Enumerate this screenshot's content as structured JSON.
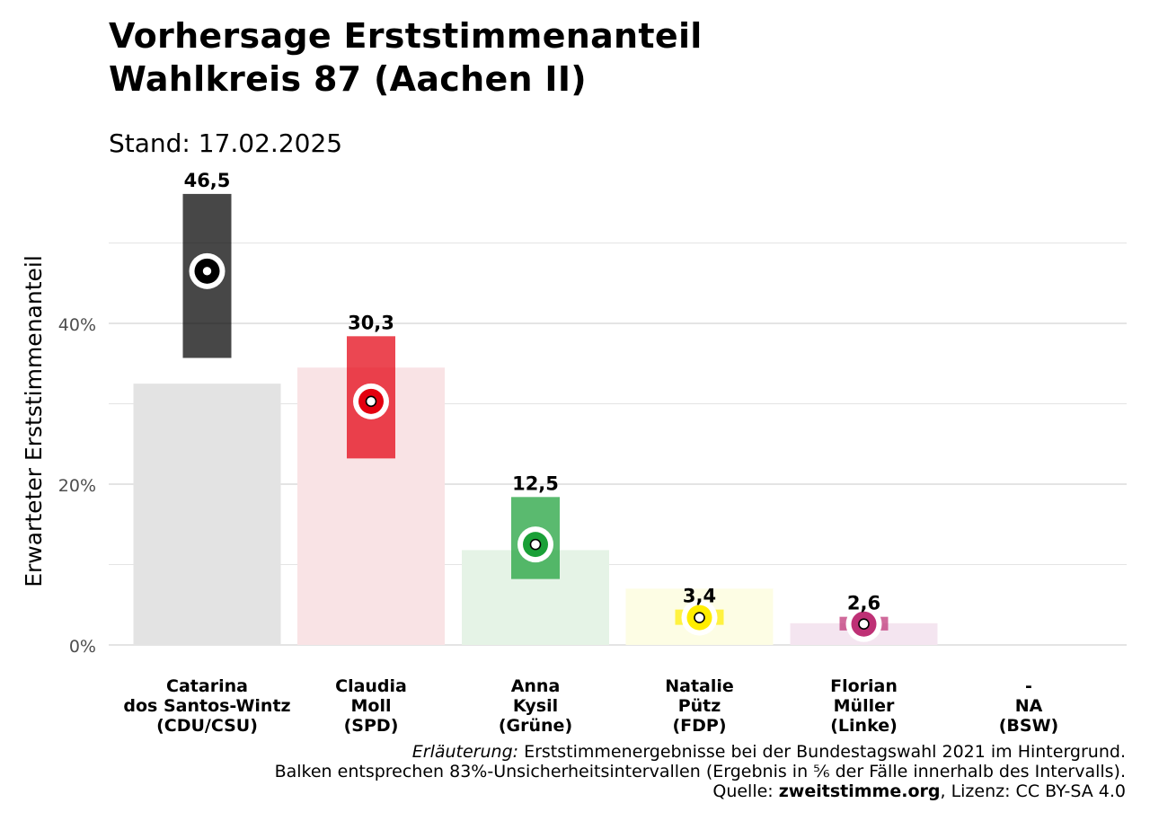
{
  "title": "Vorhersage Erststimmenanteil\nWahlkreis 87 (Aachen II)",
  "subtitle": "Stand: 17.02.2025",
  "colors": {
    "background": "#ffffff",
    "grid": "#e4e4e4",
    "text": "#000000",
    "axis_text": "#4d4d4d"
  },
  "chart_data": {
    "type": "bar",
    "ylabel": "Erwarteter Erststimmenanteil",
    "ylim": [
      0,
      56
    ],
    "yticks": [
      0,
      20,
      40
    ],
    "ytick_labels": [
      "0%",
      "20%",
      "40%"
    ],
    "grid": true,
    "categories": [
      "Catarina\ndos Santos-Wintz\n(CDU/CSU)",
      "Claudia\nMoll\n(SPD)",
      "Anna\nKysil\n(Grüne)",
      "Natalie\nPütz\n(FDP)",
      "Florian\nMüller\n(Linke)",
      "-\nNA\n(BSW)"
    ],
    "series": [
      {
        "name": "Erststimmenergebnisse Bundestagswahl 2021",
        "values": [
          32.5,
          34.5,
          11.8,
          7.0,
          2.7,
          null
        ]
      },
      {
        "name": "Vorhersage",
        "values": [
          46.5,
          30.3,
          12.5,
          3.4,
          2.6,
          null
        ],
        "data_labels": [
          "46,5",
          "30,3",
          "12,5",
          "3,4",
          "2,6",
          ""
        ],
        "lower": [
          35.7,
          23.2,
          8.2,
          2.5,
          1.8,
          null
        ],
        "upper": [
          56.1,
          38.4,
          18.4,
          4.4,
          3.5,
          null
        ]
      }
    ],
    "party_colors": [
      "#000000",
      "#e3000f",
      "#1aa037",
      "#ffed00",
      "#be3075",
      "#7d254f"
    ],
    "history_colors": [
      "#e3e3e3",
      "#f9e3e5",
      "#e5f3e6",
      "#fdfde4",
      "#f4e5f0",
      "#ede4e8"
    ]
  },
  "caption": {
    "line1_label": "Erläuterung:",
    "line1_text": " Erststimmenergebnisse bei der Bundestagswahl 2021 im Hintergrund.",
    "line2": "Balken entsprechen 83%-Unsicherheitsintervallen (Ergebnis in ⅚ der Fälle innerhalb des Intervalls).",
    "line3_prefix": "Quelle: ",
    "line3_source": "zweitstimme.org",
    "line3_suffix": ", Lizenz: CC BY-SA 4.0"
  }
}
